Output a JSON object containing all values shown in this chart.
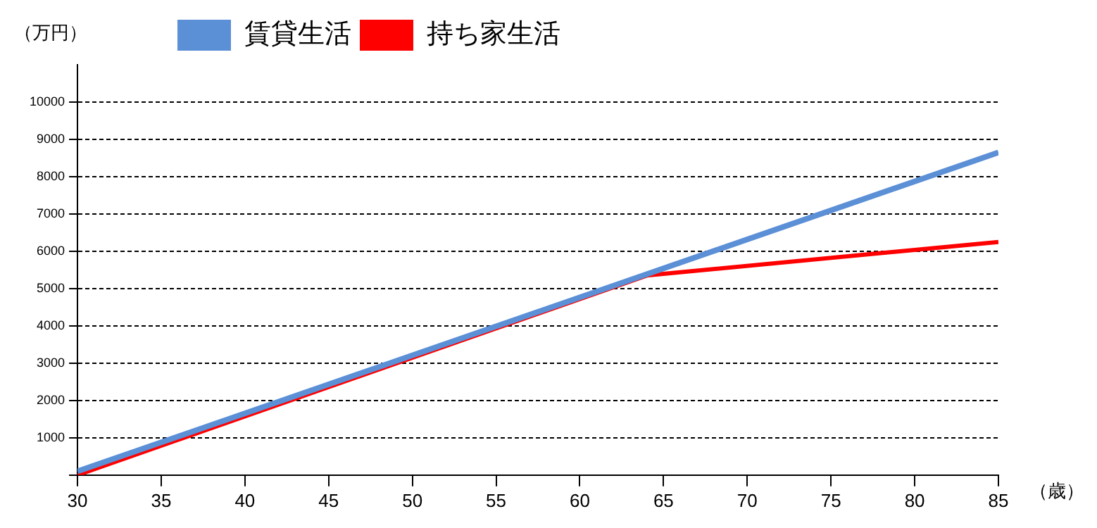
{
  "chart_data": {
    "type": "line",
    "xlabel": "（歳）",
    "ylabel": "（万円）",
    "series": [
      {
        "name": "賃貸生活",
        "color": "#5b8fd6",
        "x": [
          30,
          85
        ],
        "values": [
          100,
          8650
        ]
      },
      {
        "name": "持ち家生活",
        "color": "#ff0000",
        "x": [
          30,
          64,
          85
        ],
        "values": [
          0,
          5350,
          6250
        ]
      }
    ],
    "xlim": [
      30,
      85
    ],
    "xticks": [
      30,
      35,
      40,
      45,
      50,
      55,
      60,
      65,
      70,
      75,
      80,
      85
    ],
    "ylim": [
      0,
      11000
    ],
    "yticks": [
      {
        "value": 0,
        "label": null
      },
      1000,
      2000,
      3000,
      4000,
      5000,
      6000,
      7000,
      8000,
      9000,
      10000
    ],
    "grid": "y",
    "legend": "top left",
    "marker": "none",
    "line_style": "solid"
  }
}
